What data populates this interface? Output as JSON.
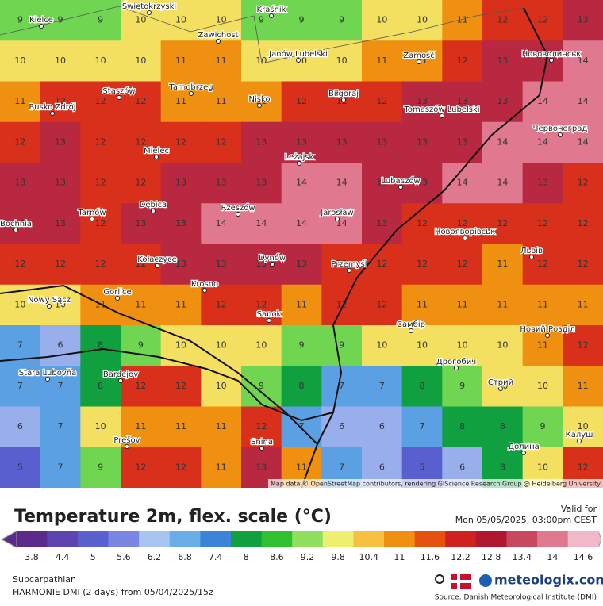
{
  "map": {
    "grid": [
      [
        9,
        9,
        9,
        10,
        10,
        10,
        9,
        9,
        9,
        10,
        10,
        11,
        12,
        12,
        13
      ],
      [
        10,
        10,
        10,
        10,
        11,
        11,
        10,
        10,
        10,
        11,
        11,
        12,
        13,
        13,
        14
      ],
      [
        11,
        12,
        12,
        12,
        11,
        11,
        11,
        12,
        12,
        12,
        13,
        13,
        13,
        14,
        14
      ],
      [
        12,
        13,
        12,
        12,
        12,
        12,
        13,
        13,
        13,
        13,
        13,
        13,
        14,
        14,
        14
      ],
      [
        13,
        13,
        12,
        12,
        13,
        13,
        13,
        14,
        14,
        13,
        13,
        14,
        14,
        13,
        12
      ],
      [
        13,
        13,
        12,
        13,
        13,
        14,
        14,
        14,
        14,
        13,
        12,
        12,
        12,
        12,
        12
      ],
      [
        12,
        12,
        12,
        12,
        13,
        13,
        13,
        13,
        12,
        12,
        12,
        12,
        11,
        12,
        12
      ],
      [
        10,
        10,
        11,
        11,
        11,
        12,
        12,
        11,
        12,
        12,
        11,
        11,
        11,
        11,
        11
      ],
      [
        7,
        6,
        8,
        9,
        10,
        10,
        10,
        9,
        9,
        10,
        10,
        10,
        10,
        11,
        12
      ],
      [
        7,
        7,
        8,
        12,
        12,
        10,
        9,
        8,
        7,
        7,
        8,
        9,
        10,
        10,
        11
      ],
      [
        6,
        7,
        10,
        11,
        11,
        11,
        12,
        7,
        6,
        6,
        7,
        8,
        8,
        9,
        10
      ],
      [
        5,
        7,
        9,
        12,
        12,
        11,
        13,
        11,
        7,
        6,
        5,
        6,
        8,
        10,
        12
      ]
    ],
    "cities": [
      "Kielce",
      "Świętokrzyski",
      "Kraśnik",
      "Zawichost",
      "Janów Lubelski",
      "Zamość",
      "Нововолинськ",
      "Staszów",
      "Tarnobrzeg",
      "Nisko",
      "Biłgoraj",
      "Busko Zdrój",
      "Tomaszów Lubelski",
      "Червоноград",
      "Mielec",
      "Leżajsk",
      "Lubaczów",
      "Tarnów",
      "Dębica",
      "Rzeszów",
      "Jarosław",
      "Новояворівськ",
      "Bochnia",
      "Львів",
      "Kołaczyce",
      "Dynów",
      "Przemyśl",
      "Krosno",
      "Gorlice",
      "Nowy Sącz",
      "Sanok",
      "Самбір",
      "Новий Розділ",
      "Дрогобич",
      "Stara Lubovňa",
      "Bardejov",
      "Стрий",
      "Prešov",
      "Snina",
      "Долина",
      "Калуш"
    ],
    "attribution": "Map data © OpenStreetMap contributors, rendering GIScience Research Group @ Heidelberg University"
  },
  "legend": {
    "title": "Temperature 2m, flex. scale (°C)",
    "valid_label": "Valid for",
    "valid_time": "Mon 05/05/2025, 03:00pm CEST",
    "ticks": [
      3.8,
      4.4,
      5,
      5.6,
      6.2,
      6.8,
      7.4,
      8,
      8.6,
      9.2,
      9.8,
      10.4,
      11,
      11.6,
      12.2,
      12.8,
      13.4,
      14,
      14.6
    ],
    "colors": [
      "#5a2a8c",
      "#5c45b0",
      "#5a5fd0",
      "#7b86e4",
      "#a8c4f0",
      "#6aaee8",
      "#3c84d8",
      "#10a040",
      "#30c030",
      "#90e060",
      "#f0f070",
      "#f8c040",
      "#f09010",
      "#e85010",
      "#d02020",
      "#b01830",
      "#c84860",
      "#e07890",
      "#f0b8c8"
    ]
  },
  "footer": {
    "region": "Subcarpathian",
    "model": "HARMONIE DMI (2 days)  from  05/04/2025/15z",
    "brand": "meteologix.com",
    "source": "Source: Danish Meteorological Institute (DMI)"
  }
}
